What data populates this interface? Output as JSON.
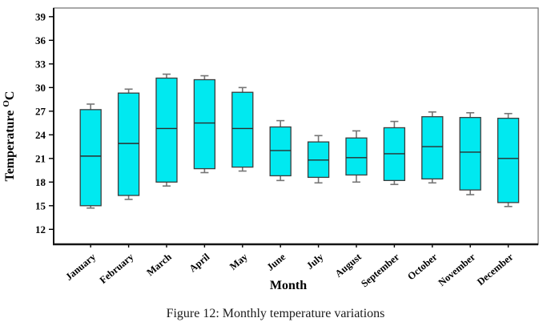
{
  "figure": {
    "caption": "Figure 12: Monthly temperature variations"
  },
  "chart_data": {
    "type": "boxplot",
    "title": "",
    "xlabel": "Month",
    "ylabel": "Temperature",
    "ylabel_superscript": "O",
    "ylabel_unit": "C",
    "ylim": [
      10.1,
      40.1
    ],
    "yticks": [
      12,
      15,
      18,
      21,
      24,
      27,
      30,
      33,
      36,
      39
    ],
    "grid": false,
    "legend": "none",
    "box_fill_color": "#00E9F0",
    "box_border_color": "#3C3C3C",
    "whisker_color": "#757575",
    "median_color": "#2D2D2D",
    "categories": [
      "January",
      "February",
      "March",
      "April",
      "May",
      "June",
      "July",
      "August",
      "September",
      "October",
      "November",
      "December"
    ],
    "series": [
      {
        "month": "January",
        "whisker_low": 14.7,
        "q1": 15.0,
        "median": 21.3,
        "q3": 27.2,
        "whisker_high": 27.9
      },
      {
        "month": "February",
        "whisker_low": 15.8,
        "q1": 16.3,
        "median": 22.9,
        "q3": 29.3,
        "whisker_high": 29.8
      },
      {
        "month": "March",
        "whisker_low": 17.5,
        "q1": 18.0,
        "median": 24.8,
        "q3": 31.2,
        "whisker_high": 31.7
      },
      {
        "month": "April",
        "whisker_low": 19.2,
        "q1": 19.7,
        "median": 25.5,
        "q3": 31.0,
        "whisker_high": 31.5
      },
      {
        "month": "May",
        "whisker_low": 19.4,
        "q1": 19.9,
        "median": 24.8,
        "q3": 29.4,
        "whisker_high": 30.0
      },
      {
        "month": "June",
        "whisker_low": 18.2,
        "q1": 18.8,
        "median": 22.0,
        "q3": 25.0,
        "whisker_high": 25.8
      },
      {
        "month": "July",
        "whisker_low": 17.9,
        "q1": 18.6,
        "median": 20.8,
        "q3": 23.1,
        "whisker_high": 23.9
      },
      {
        "month": "August",
        "whisker_low": 18.0,
        "q1": 18.9,
        "median": 21.1,
        "q3": 23.6,
        "whisker_high": 24.5
      },
      {
        "month": "September",
        "whisker_low": 17.7,
        "q1": 18.2,
        "median": 21.6,
        "q3": 24.9,
        "whisker_high": 25.7
      },
      {
        "month": "October",
        "whisker_low": 17.9,
        "q1": 18.4,
        "median": 22.5,
        "q3": 26.3,
        "whisker_high": 26.9
      },
      {
        "month": "November",
        "whisker_low": 16.4,
        "q1": 17.0,
        "median": 21.8,
        "q3": 26.2,
        "whisker_high": 26.8
      },
      {
        "month": "December",
        "whisker_low": 14.9,
        "q1": 15.4,
        "median": 21.0,
        "q3": 26.1,
        "whisker_high": 26.7
      }
    ]
  }
}
